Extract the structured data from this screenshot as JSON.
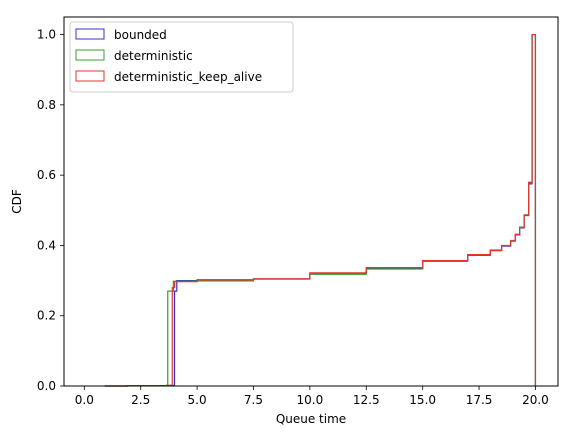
{
  "chart_data": {
    "type": "line",
    "style": "cumulative step histogram",
    "xlabel": "Queue time",
    "ylabel": "CDF",
    "xlim": [
      -0.9,
      21.0
    ],
    "ylim": [
      0.0,
      1.05
    ],
    "xticks": [
      "0.0",
      "2.5",
      "5.0",
      "7.5",
      "10.0",
      "12.5",
      "15.0",
      "17.5",
      "20.0"
    ],
    "xtick_values": [
      0,
      2.5,
      5,
      7.5,
      10,
      12.5,
      15,
      17.5,
      20
    ],
    "yticks": [
      "0.0",
      "0.2",
      "0.4",
      "0.6",
      "0.8",
      "1.0"
    ],
    "ytick_values": [
      0,
      0.2,
      0.4,
      0.6,
      0.8,
      1.0
    ],
    "grid": false,
    "legend_position": "top-left",
    "series": [
      {
        "name": "bounded",
        "color": "#3333cc",
        "points": [
          [
            0.9,
            0
          ],
          [
            1.9,
            0.001
          ],
          [
            3.8,
            0.002
          ],
          [
            4.0,
            0.003
          ],
          [
            4.0,
            0.27
          ],
          [
            4.1,
            0.3
          ],
          [
            5,
            0.302
          ],
          [
            7.5,
            0.305
          ],
          [
            10,
            0.32
          ],
          [
            12.5,
            0.335
          ],
          [
            15,
            0.355
          ],
          [
            17.0,
            0.372
          ],
          [
            18.0,
            0.385
          ],
          [
            18.5,
            0.398
          ],
          [
            18.9,
            0.412
          ],
          [
            19.1,
            0.43
          ],
          [
            19.3,
            0.45
          ],
          [
            19.5,
            0.485
          ],
          [
            19.7,
            0.575
          ],
          [
            19.85,
            1.0
          ],
          [
            20.0,
            1.0
          ],
          [
            20.0,
            0
          ]
        ]
      },
      {
        "name": "deterministic",
        "color": "#33a02c",
        "points": [
          [
            0.9,
            0
          ],
          [
            1.9,
            0.001
          ],
          [
            3.6,
            0.002
          ],
          [
            3.7,
            0.003
          ],
          [
            3.7,
            0.27
          ],
          [
            3.95,
            0.27
          ],
          [
            3.95,
            0.298
          ],
          [
            5,
            0.3
          ],
          [
            7.5,
            0.304
          ],
          [
            10,
            0.318
          ],
          [
            12.5,
            0.333
          ],
          [
            15,
            0.356
          ],
          [
            17.0,
            0.374
          ],
          [
            18.0,
            0.387
          ],
          [
            18.5,
            0.4
          ],
          [
            18.9,
            0.414
          ],
          [
            19.1,
            0.432
          ],
          [
            19.3,
            0.452
          ],
          [
            19.5,
            0.487
          ],
          [
            19.7,
            0.578
          ],
          [
            19.85,
            1.0
          ],
          [
            20.0,
            1.0
          ],
          [
            20.0,
            0
          ]
        ]
      },
      {
        "name": "deterministic_keep_alive",
        "color": "#e3342f",
        "points": [
          [
            0.9,
            0
          ],
          [
            1.9,
            0.001
          ],
          [
            3.7,
            0.002
          ],
          [
            3.9,
            0.003
          ],
          [
            3.9,
            0.28
          ],
          [
            4.0,
            0.28
          ],
          [
            4.0,
            0.297
          ],
          [
            5,
            0.299
          ],
          [
            7.5,
            0.305
          ],
          [
            10,
            0.322
          ],
          [
            12.5,
            0.337
          ],
          [
            15,
            0.357
          ],
          [
            17.0,
            0.374
          ],
          [
            18.0,
            0.386
          ],
          [
            18.5,
            0.399
          ],
          [
            18.9,
            0.413
          ],
          [
            19.1,
            0.431
          ],
          [
            19.3,
            0.451
          ],
          [
            19.5,
            0.486
          ],
          [
            19.7,
            0.58
          ],
          [
            19.85,
            1.0
          ],
          [
            20.0,
            1.0
          ],
          [
            20.0,
            0
          ]
        ]
      }
    ]
  }
}
